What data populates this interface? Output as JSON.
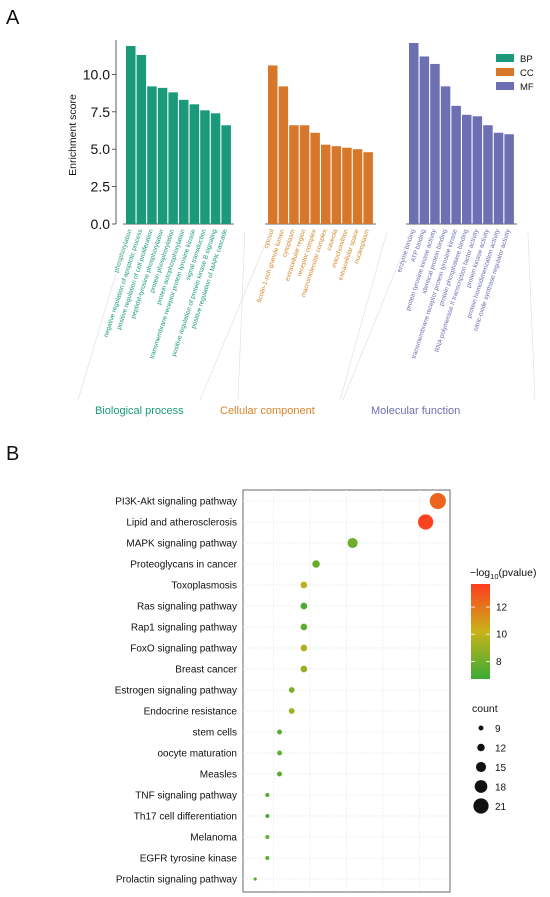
{
  "panels": {
    "a_label": "A",
    "b_label": "B"
  },
  "chart_data": [
    {
      "type": "bar",
      "panel": "A",
      "ylabel": "Enrichment score",
      "ylim": [
        0,
        12.3
      ],
      "yticks": [
        "0.0",
        "2.5",
        "5.0",
        "7.5",
        "10.0"
      ],
      "legend_placement": "top-right",
      "series": [
        {
          "name": "BP",
          "group_label": "Biological process",
          "color": "#1a9a7a",
          "label_color": "#1a9a7a",
          "categories": [
            "phosphorylation",
            "negative regulation of apoptotic process",
            "positive regulation of cell proliferation",
            "peptidyl-tyrosine phosphorylation",
            "protein phosphorylation",
            "protein autophosphorylation",
            "transmembrane receptor protein tyrosine kinase",
            "signal transduction",
            "positive regulation of protein kinase B signaling",
            "positive regulation of MAPK cascade"
          ],
          "values": [
            11.9,
            11.3,
            9.2,
            9.1,
            8.8,
            8.3,
            8.0,
            7.6,
            7.4,
            6.6
          ]
        },
        {
          "name": "CC",
          "group_label": "Cellular component",
          "color": "#d6772a",
          "label_color": "#d6862a",
          "categories": [
            "cytosol",
            "ficolin-1-rich granule lumen",
            "cytoplasm",
            "extracellular region",
            "receptor complex",
            "macromolecular complex",
            "caveola",
            "mitochondrion",
            "extracellular space",
            "nucleoplasm"
          ],
          "values": [
            10.6,
            9.2,
            6.6,
            6.6,
            6.1,
            5.3,
            5.2,
            5.1,
            5.0,
            4.8
          ]
        },
        {
          "name": "MF",
          "group_label": "Molecular function",
          "color": "#6d6fb3",
          "label_color": "#6d6fb3",
          "categories": [
            "enzyme binding",
            "ATP binding",
            "protein tyrosine kinase activity",
            "identical protein binding",
            "transmembrane receptor protein tyrosine kinase",
            "protein phosphatase binding",
            "RNA polymerase II transcription factor activity",
            "protein kinase activity",
            "protein homodimerization activity",
            "nitric-oxide synthase regulator activity"
          ],
          "values": [
            12.1,
            11.2,
            10.7,
            9.2,
            7.9,
            7.3,
            7.2,
            6.6,
            6.1,
            6.0
          ]
        }
      ]
    },
    {
      "type": "scatter",
      "panel": "B",
      "categories": [
        "PI3K-Akt signaling pathway",
        "Lipid and atherosclerosis",
        "MAPK signaling pathway",
        "Proteoglycans in cancer",
        "Toxoplasmosis",
        "Ras signaling pathway",
        "Rap1 signaling pathway",
        "FoxO signaling pathway",
        "Breast cancer",
        "Estrogen signaling pathway",
        "Endocrine resistance",
        "stem cells",
        "oocyte maturation",
        "Measles",
        "TNF signaling pathway",
        "Th17 cell differentiation",
        "Melanoma",
        "EGFR tyrosine kinase",
        "Prolactin signaling pathway"
      ],
      "count": [
        22,
        21,
        15,
        12,
        11,
        11,
        11,
        11,
        11,
        10,
        10,
        9,
        9,
        9,
        8,
        8,
        8,
        8,
        7
      ],
      "neg_log10_pvalue": [
        12.5,
        13.5,
        8.0,
        7.8,
        9.8,
        7.2,
        7.6,
        9.6,
        9.0,
        8.3,
        9.2,
        7.5,
        7.7,
        7.4,
        7.3,
        7.2,
        7.8,
        7.6,
        7.4
      ],
      "grid": true,
      "colorbar": {
        "title_prefix": "−log",
        "title_sub": "10",
        "title_suffix": "(pvalue)",
        "range": [
          6.7,
          13.7
        ],
        "ticks": [
          "8",
          "10",
          "12"
        ],
        "tick_values": [
          8,
          10,
          12
        ],
        "colors": [
          "#3aaa35",
          "#c9b21a",
          "#ff3c1e"
        ]
      },
      "size_legend": {
        "title": "count",
        "labels": [
          "9",
          "12",
          "15",
          "18",
          "21"
        ],
        "values": [
          9,
          12,
          15,
          18,
          21
        ]
      }
    }
  ]
}
